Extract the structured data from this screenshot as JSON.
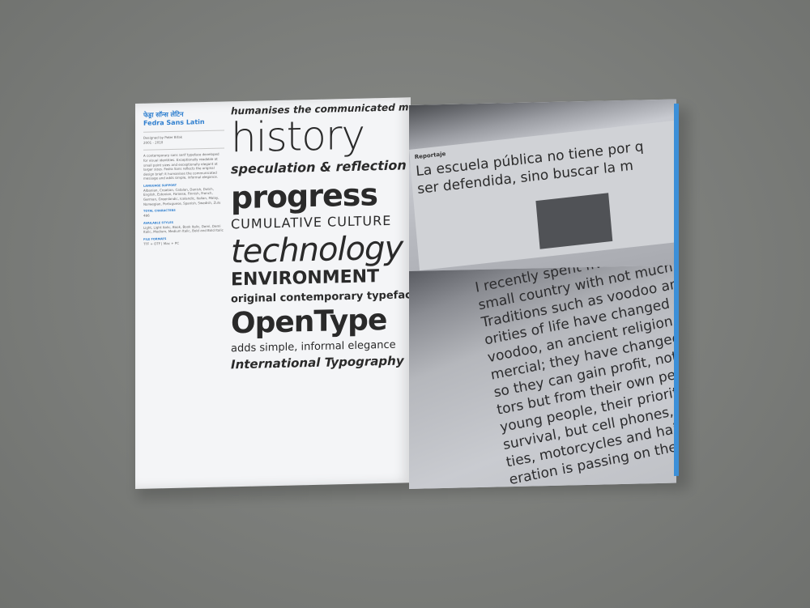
{
  "left_page": {
    "sidebar": {
      "heading_hindi": "फेड्रा सॉन्स लेटिन",
      "heading_latin": "Fedra Sans Latin",
      "designer": "Designed by Peter Biľak",
      "years": "2001 - 2010",
      "description": "A contemporary sans serif typeface developed for visual identities. Exceptionally readable at small point sizes and exceptionally elegant at larger sizes. Fedra Sans reflects the original design brief: it humanises the communicated message and adds simple, informal elegance.",
      "languages_label": "LANGUAGE SUPPORT",
      "languages": "Albanian, Croatian, Catalan, Danish, Dutch, English, Estonian, Faroese, Finnish, French, German, Greenlandic, Icelandic, Italian, Malay, Norwegian, Portuguese, Spanish, Swedish, Zulu",
      "chars_label": "TOTAL CHARACTERS",
      "chars": "486",
      "styles_label": "AVAILABLE STYLES",
      "styles": "Light, Light Italic, Book, Book Italic, Demi, Demi Italic, Medium, Medium Italic, Bold and Bold Italic",
      "formats_label": "FILE FORMATS",
      "formats": "TTF + OTF | Mac + PC"
    },
    "specimen": [
      "humanises the communicated message",
      "history",
      "speculation & reflection",
      "progress",
      "CUMULATIVE CULTURE",
      "technology",
      "ENVIRONMENT",
      "original contemporary typeface",
      "OpenType",
      "adds simple, informal elegance",
      "International Typography"
    ]
  },
  "right_page": {
    "newspaper": {
      "section": "Reportaje",
      "headline_1": "La escuela pública no tiene por q",
      "headline_2": "ser defendida, sino buscar la m"
    },
    "paragraph_lines": [
      "I recently spent five months in Be",
      "small country with not much dev",
      "Traditions such as voodoo and",
      "orities of life have changed dram",
      "voodoo, an ancient religion, is n",
      "mercial; they have changed var",
      "so they can gain profit, not only",
      "tors but from their own people",
      "young people, their priority no",
      "survival, but cell phones, fash",
      "ties, motorcycles and hair. The",
      "eration is passing on the prin"
    ]
  },
  "colors": {
    "background": "#7d7f7c",
    "accent_blue": "#2f7fcf",
    "page_white": "#f4f5f7"
  }
}
